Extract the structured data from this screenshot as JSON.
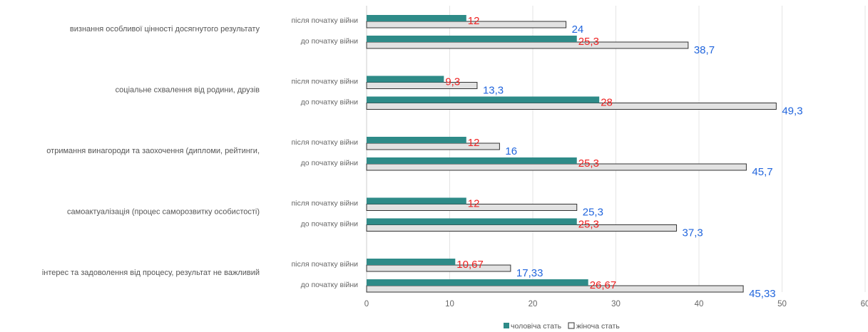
{
  "chart_data": {
    "type": "bar",
    "orientation": "horizontal",
    "title": "",
    "xlabel": "",
    "ylabel": "",
    "xlim": [
      0,
      60
    ],
    "x_ticks": [
      "0",
      "10",
      "20",
      "30",
      "40",
      "50",
      "60"
    ],
    "grid": true,
    "legend_position": "bottom",
    "categories": [
      {
        "label": "визнання особливої цінності досягнутого результату",
        "groups": [
          {
            "label": "після початку війни",
            "male": 12,
            "male_label": "12",
            "female": 24,
            "female_label": "24"
          },
          {
            "label": "до початку війни",
            "male": 25.3,
            "male_label": "25,3",
            "female": 38.7,
            "female_label": "38,7"
          }
        ]
      },
      {
        "label": "соціальне схвалення від родини, друзів",
        "groups": [
          {
            "label": "після початку війни",
            "male": 9.3,
            "male_label": "9,3",
            "female": 13.3,
            "female_label": "13,3"
          },
          {
            "label": "до початку війни",
            "male": 28,
            "male_label": "28",
            "female": 49.3,
            "female_label": "49,3"
          }
        ]
      },
      {
        "label": "отримання винагороди та заохочення (дипломи, рейтинги,",
        "groups": [
          {
            "label": "після початку війни",
            "male": 12,
            "male_label": "12",
            "female": 16,
            "female_label": "16"
          },
          {
            "label": "до початку війни",
            "male": 25.3,
            "male_label": "25,3",
            "female": 45.7,
            "female_label": "45,7"
          }
        ]
      },
      {
        "label": "самоактуалізація (процес саморозвитку особистості)",
        "groups": [
          {
            "label": "після початку війни",
            "male": 12,
            "male_label": "12",
            "female": 25.3,
            "female_label": "25,3"
          },
          {
            "label": "до початку війни",
            "male": 25.3,
            "male_label": "25,3",
            "female": 37.3,
            "female_label": "37,3"
          }
        ]
      },
      {
        "label": "інтерес та задоволення від процесу, результат не важливий",
        "groups": [
          {
            "label": "після початку війни",
            "male": 10.67,
            "male_label": "10,67",
            "female": 17.33,
            "female_label": "17,33"
          },
          {
            "label": "до початку війни",
            "male": 26.67,
            "male_label": "26,67",
            "female": 45.33,
            "female_label": "45,33"
          }
        ]
      }
    ],
    "series": [
      {
        "key": "male",
        "name": "чоловіча стать",
        "color": "#2e8b88",
        "label_color": "#ee2222"
      },
      {
        "key": "female",
        "name": "жіноча стать",
        "color": "#e2e2e2",
        "label_color": "#2266dd"
      }
    ]
  }
}
